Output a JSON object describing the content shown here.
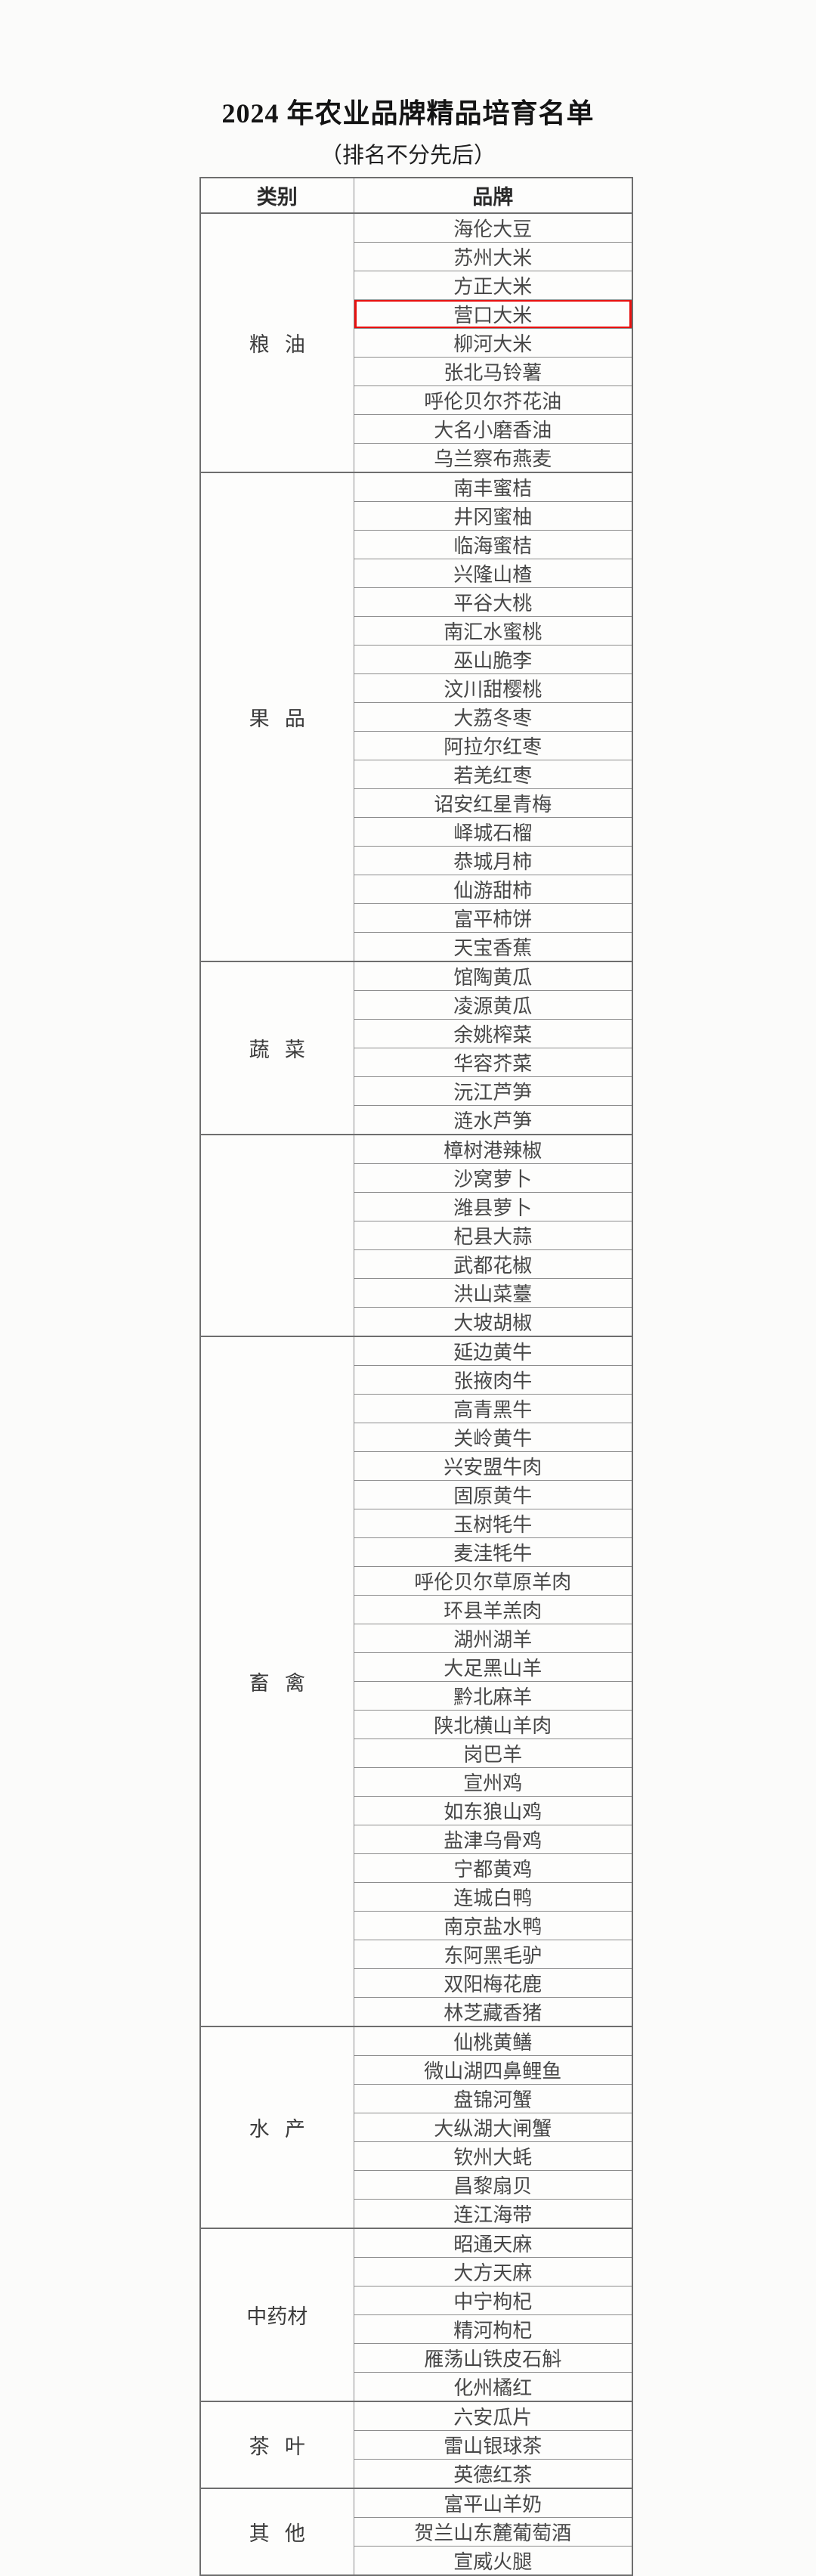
{
  "page": {
    "title": "2024 年农业品牌精品培育名单",
    "subtitle": "（排名不分先后）"
  },
  "table": {
    "headers": [
      "类别",
      "品牌"
    ],
    "highlight": {
      "brand": "营口大米",
      "box_color": "#e8100f"
    },
    "categories": [
      {
        "label": "粮油",
        "brands": [
          "海伦大豆",
          "苏州大米",
          "方正大米",
          "营口大米",
          "柳河大米",
          "张北马铃薯",
          "呼伦贝尔芥花油",
          "大名小磨香油",
          "乌兰察布燕麦"
        ]
      },
      {
        "label": "果品",
        "brands": [
          "南丰蜜桔",
          "井冈蜜柚",
          "临海蜜桔",
          "兴隆山楂",
          "平谷大桃",
          "南汇水蜜桃",
          "巫山脆李",
          "汶川甜樱桃",
          "大荔冬枣",
          "阿拉尔红枣",
          "若羌红枣",
          "诏安红星青梅",
          "峄城石榴",
          "恭城月柿",
          "仙游甜柿",
          "富平柿饼",
          "天宝香蕉"
        ]
      },
      {
        "label": "蔬菜",
        "brands": [
          "馆陶黄瓜",
          "凌源黄瓜",
          "余姚榨菜",
          "华容芥菜",
          "沅江芦笋",
          "涟水芦笋"
        ]
      },
      {
        "label": "",
        "brands": [
          "樟树港辣椒",
          "沙窝萝卜",
          "潍县萝卜",
          "杞县大蒜",
          "武都花椒",
          "洪山菜薹",
          "大坡胡椒"
        ]
      },
      {
        "label": "畜禽",
        "brands": [
          "延边黄牛",
          "张掖肉牛",
          "高青黑牛",
          "关岭黄牛",
          "兴安盟牛肉",
          "固原黄牛",
          "玉树牦牛",
          "麦洼牦牛",
          "呼伦贝尔草原羊肉",
          "环县羊羔肉",
          "湖州湖羊",
          "大足黑山羊",
          "黔北麻羊",
          "陕北横山羊肉",
          "岗巴羊",
          "宣州鸡",
          "如东狼山鸡",
          "盐津乌骨鸡",
          "宁都黄鸡",
          "连城白鸭",
          "南京盐水鸭",
          "东阿黑毛驴",
          "双阳梅花鹿",
          "林芝藏香猪"
        ]
      },
      {
        "label": "水产",
        "brands": [
          "仙桃黄鳝",
          "微山湖四鼻鲤鱼",
          "盘锦河蟹",
          "大纵湖大闸蟹",
          "钦州大蚝",
          "昌黎扇贝",
          "连江海带"
        ]
      },
      {
        "label": "中药材",
        "brands": [
          "昭通天麻",
          "大方天麻",
          "中宁枸杞",
          "精河枸杞",
          "雁荡山铁皮石斛",
          "化州橘红"
        ]
      },
      {
        "label": "茶叶",
        "brands": [
          "六安瓜片",
          "雷山银球茶",
          "英德红茶"
        ]
      },
      {
        "label": "其他",
        "brands": [
          "富平山羊奶",
          "贺兰山东麓葡萄酒",
          "宣威火腿"
        ]
      }
    ]
  }
}
